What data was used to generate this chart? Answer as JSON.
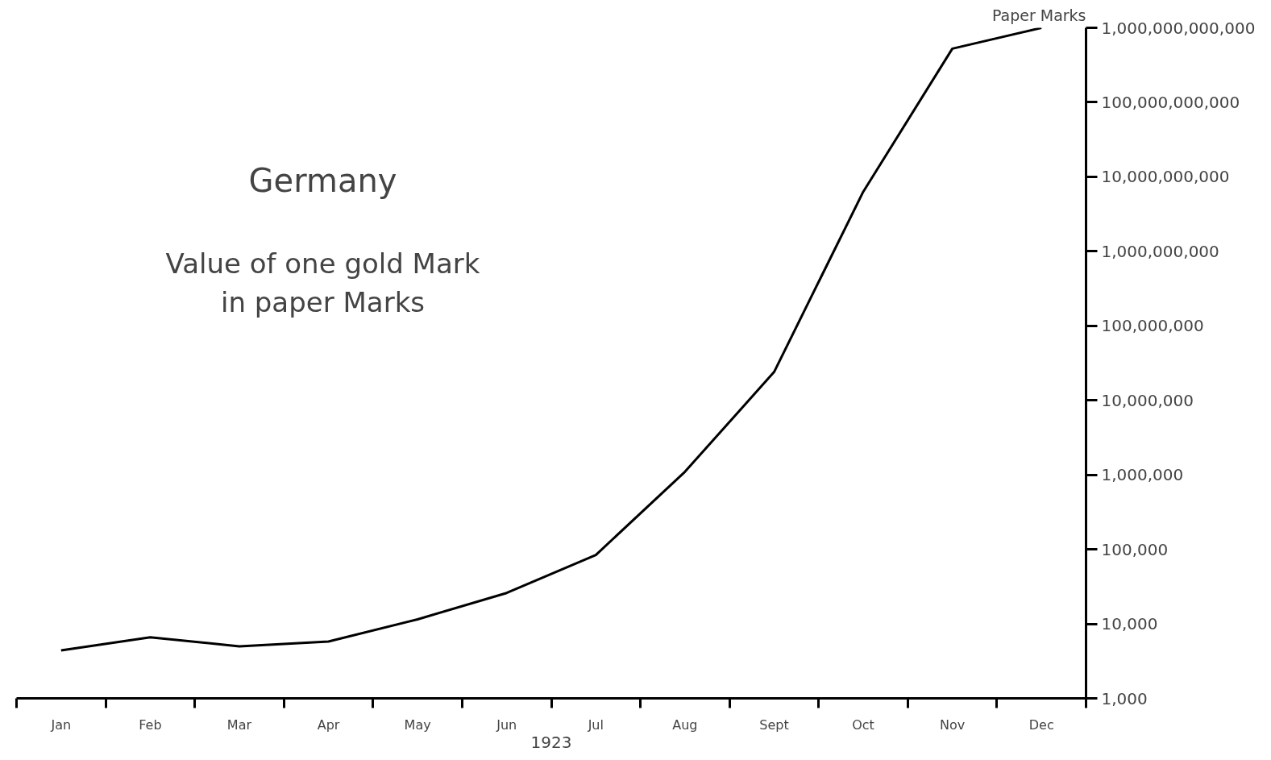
{
  "chart_data": {
    "type": "line",
    "title": "Germany",
    "subtitle": "Value of one gold Mark\nin paper Marks",
    "xlabel": "1923",
    "ylabel": "Paper Marks",
    "categories": [
      "Jan",
      "Feb",
      "Mar",
      "Apr",
      "May",
      "Jun",
      "Jul",
      "Aug",
      "Sept",
      "Oct",
      "Nov",
      "Dec"
    ],
    "series": [
      {
        "color": "#000000",
        "values": [
          4400,
          6600,
          5000,
          5800,
          11500,
          26000,
          84000,
          1100000,
          24000000,
          6300000000,
          525000000000,
          1000000000000
        ]
      }
    ],
    "log": true,
    "ylim": [
      1000,
      1000000000000
    ],
    "yticks": [
      {
        "value": 1000,
        "label": "1,000"
      },
      {
        "value": 10000,
        "label": "10,000"
      },
      {
        "value": 100000,
        "label": "100,000"
      },
      {
        "value": 1000000,
        "label": "1,000,000"
      },
      {
        "value": 10000000,
        "label": "10,000,000"
      },
      {
        "value": 100000000,
        "label": "100,000,000"
      },
      {
        "value": 1000000000,
        "label": "1,000,000,000"
      },
      {
        "value": 10000000000,
        "label": "10,000,000,000"
      },
      {
        "value": 100000000000,
        "label": "100,000,000,000"
      },
      {
        "value": 1000000000000,
        "label": "1,000,000,000,000"
      }
    ],
    "grid": false,
    "marker": "none",
    "line_style": "solid"
  }
}
